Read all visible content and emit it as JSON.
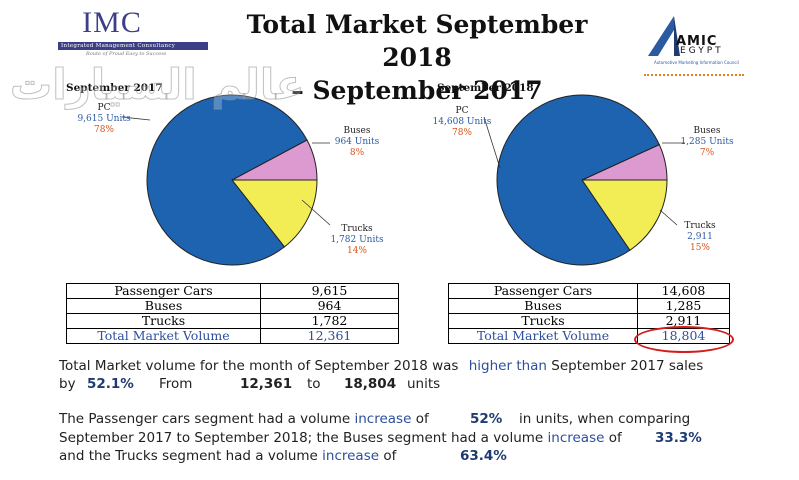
{
  "header": {
    "imc_logo": "IMC",
    "imc_subtitle": "Integrated Management Consultancy",
    "imc_tagline": "Route of Proud Easy to Success",
    "title_line1": "Total Market September 2018",
    "title_line2": "– September 2017",
    "amic_logo_text": "AMIC",
    "amic_logo_sub": "EGYPT",
    "amic_caption": "Automotive Marketing Information Council",
    "watermark": "عالم السيارات"
  },
  "chart_data": [
    {
      "type": "pie",
      "title": "September 2017",
      "slices": [
        {
          "name": "PC",
          "units_label": "9,615 Units",
          "value": 9615,
          "percent_label": "78%"
        },
        {
          "name": "Buses",
          "units_label": "964 Units",
          "value": 964,
          "percent_label": "8%"
        },
        {
          "name": "Trucks",
          "units_label": "1,782 Units",
          "value": 1782,
          "percent_label": "14%"
        }
      ],
      "colors": [
        "#1e63b0",
        "#dc9ad0",
        "#f2ec55"
      ]
    },
    {
      "type": "pie",
      "title": "September 2018",
      "slices": [
        {
          "name": "PC",
          "units_label": "14,608 Units",
          "value": 14608,
          "percent_label": "78%"
        },
        {
          "name": "Buses",
          "units_label": "1,285 Units",
          "value": 1285,
          "percent_label": "7%"
        },
        {
          "name": "Trucks",
          "units_label": "2,911",
          "value": 2911,
          "percent_label": "15%"
        }
      ],
      "colors": [
        "#1e63b0",
        "#dc9ad0",
        "#f2ec55"
      ]
    }
  ],
  "table_2017": {
    "rows": [
      {
        "label": "Passenger Cars",
        "value": "9,615"
      },
      {
        "label": "Buses",
        "value": "964"
      },
      {
        "label": "Trucks",
        "value": "1,782"
      },
      {
        "label": "Total Market Volume",
        "value": "12,361"
      }
    ]
  },
  "table_2018": {
    "rows": [
      {
        "label": "Passenger Cars",
        "value": "14,608"
      },
      {
        "label": "Buses",
        "value": "1,285"
      },
      {
        "label": "Trucks",
        "value": "2,911"
      },
      {
        "label": "Total Market Volume",
        "value": "18,804"
      }
    ]
  },
  "summary": {
    "p1_a": "Total Market volume for the month of September 2018 was",
    "p1_b": "higher than",
    "p1_c": "September 2017 sales",
    "p1_by": "by",
    "p1_pct": "52.1%",
    "p1_from": "From",
    "p1_v1": "12,361",
    "p1_to": "to",
    "p1_v2": "18,804",
    "p1_units": "units",
    "p2_a": "The Passenger cars segment had a volume",
    "p2_inc": "increase",
    "p2_of": "of",
    "p2_pct": "52%",
    "p2_b": "in units, when comparing",
    "p3_a": "September 2017 to September 2018; the Buses segment had a volume",
    "p3_inc": "increase",
    "p3_of": "of",
    "p3_pct": "33.3%",
    "p4_a": "and the Trucks segment had a volume",
    "p4_inc": "increase",
    "p4_of": "of",
    "p4_pct": "63.4%"
  }
}
